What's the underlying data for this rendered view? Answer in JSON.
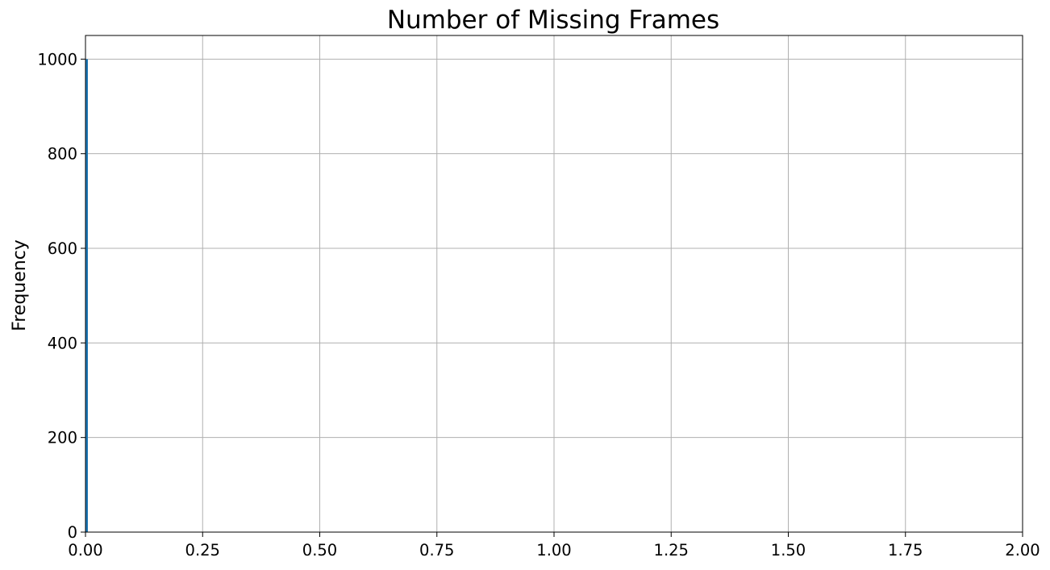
{
  "chart_data": {
    "type": "bar",
    "title": "Number of Missing Frames",
    "xlabel": "",
    "ylabel": "Frequency",
    "xlim": [
      0.0,
      2.0
    ],
    "ylim": [
      0,
      1050
    ],
    "x_ticks": [
      "0.00",
      "0.25",
      "0.50",
      "0.75",
      "1.00",
      "1.25",
      "1.50",
      "1.75",
      "2.00"
    ],
    "y_ticks": [
      "0",
      "200",
      "400",
      "600",
      "800",
      "1000"
    ],
    "grid": true,
    "legend": "none",
    "bars": [
      {
        "x_start": 0.0,
        "x_end": 0.005,
        "value": 1000
      }
    ],
    "colors": {
      "bar": "#1f77b4",
      "grid": "#b0b0b0",
      "axes": "#000000"
    }
  }
}
